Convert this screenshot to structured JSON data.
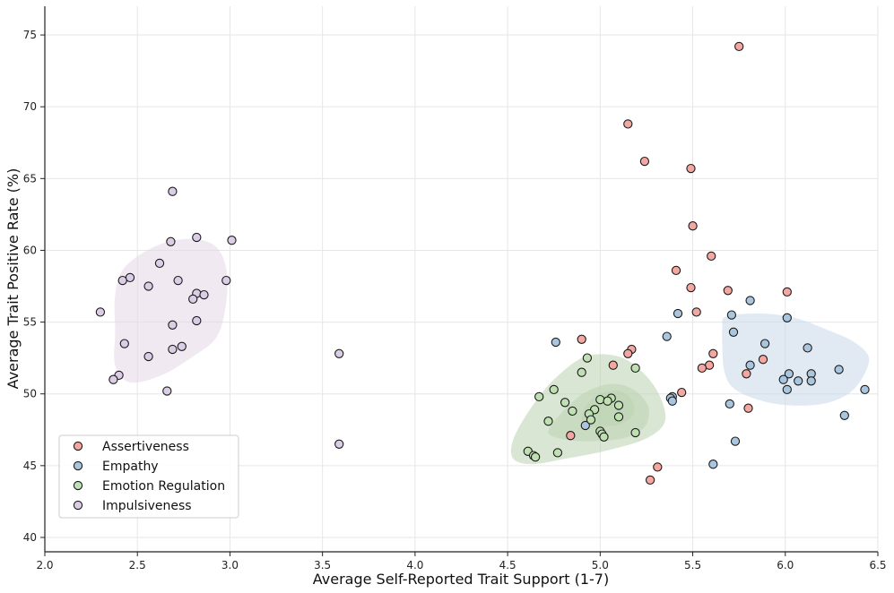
{
  "chart_data": {
    "type": "scatter",
    "title": "",
    "xlabel": "Average Self-Reported Trait Support (1-7)",
    "ylabel": "Average Trait Positive Rate (%)",
    "xlim": [
      2.0,
      6.5
    ],
    "ylim": [
      39.0,
      77.0
    ],
    "x_ticks": [
      "2.0",
      "2.5",
      "3.0",
      "3.5",
      "4.0",
      "4.5",
      "5.0",
      "5.5",
      "6.0",
      "6.5"
    ],
    "y_ticks": [
      "40",
      "45",
      "50",
      "55",
      "60",
      "65",
      "70",
      "75"
    ],
    "grid": true,
    "legend_position": "bottom-left",
    "series": [
      {
        "name": "Assertiveness",
        "color": "#f4a6a0",
        "density_color": "",
        "points": [
          [
            5.75,
            74.2
          ],
          [
            5.15,
            68.8
          ],
          [
            5.24,
            66.2
          ],
          [
            5.49,
            65.7
          ],
          [
            5.5,
            61.7
          ],
          [
            5.6,
            59.6
          ],
          [
            5.41,
            58.6
          ],
          [
            5.49,
            57.4
          ],
          [
            5.69,
            57.2
          ],
          [
            6.01,
            57.1
          ],
          [
            5.52,
            55.7
          ],
          [
            4.9,
            53.8
          ],
          [
            5.17,
            53.1
          ],
          [
            5.15,
            52.8
          ],
          [
            5.61,
            52.8
          ],
          [
            5.88,
            52.4
          ],
          [
            5.07,
            52.0
          ],
          [
            5.59,
            52.0
          ],
          [
            5.55,
            51.8
          ],
          [
            5.79,
            51.4
          ],
          [
            5.44,
            50.1
          ],
          [
            5.8,
            49.0
          ],
          [
            4.84,
            47.1
          ],
          [
            5.31,
            44.9
          ],
          [
            5.27,
            44.0
          ]
        ],
        "regions": []
      },
      {
        "name": "Empathy",
        "color": "#a9c6de",
        "density_color": "#c9d9ea",
        "points": [
          [
            5.81,
            56.5
          ],
          [
            5.42,
            55.6
          ],
          [
            5.71,
            55.5
          ],
          [
            6.01,
            55.3
          ],
          [
            5.72,
            54.3
          ],
          [
            4.76,
            53.6
          ],
          [
            5.36,
            54.0
          ],
          [
            5.89,
            53.5
          ],
          [
            6.12,
            53.2
          ],
          [
            5.81,
            52.0
          ],
          [
            6.29,
            51.7
          ],
          [
            6.02,
            51.4
          ],
          [
            6.14,
            51.4
          ],
          [
            5.99,
            51.0
          ],
          [
            6.07,
            50.9
          ],
          [
            6.14,
            50.9
          ],
          [
            6.01,
            50.3
          ],
          [
            6.43,
            50.3
          ],
          [
            5.39,
            49.8
          ],
          [
            5.38,
            49.7
          ],
          [
            5.39,
            49.5
          ],
          [
            5.7,
            49.3
          ],
          [
            4.92,
            47.8
          ],
          [
            6.32,
            48.5
          ],
          [
            5.73,
            46.7
          ],
          [
            5.61,
            45.1
          ]
        ],
        "regions": [
          [
            [
              5.68,
              55.4
            ],
            [
              5.87,
              55.6
            ],
            [
              6.05,
              55.3
            ],
            [
              6.2,
              54.6
            ],
            [
              6.36,
              53.7
            ],
            [
              6.45,
              52.6
            ],
            [
              6.42,
              51.2
            ],
            [
              6.34,
              50.0
            ],
            [
              6.2,
              49.3
            ],
            [
              6.02,
              49.2
            ],
            [
              5.85,
              49.6
            ],
            [
              5.72,
              50.4
            ],
            [
              5.67,
              51.6
            ],
            [
              5.66,
              53.3
            ],
            [
              5.66,
              54.6
            ]
          ]
        ]
      },
      {
        "name": "Emotion Regulation",
        "color": "#bfe0b2",
        "density_color": "#b8d1ae",
        "points": [
          [
            4.93,
            52.5
          ],
          [
            4.9,
            51.5
          ],
          [
            5.19,
            51.8
          ],
          [
            4.75,
            50.3
          ],
          [
            4.67,
            49.8
          ],
          [
            4.81,
            49.4
          ],
          [
            5.0,
            49.6
          ],
          [
            5.06,
            49.7
          ],
          [
            5.04,
            49.5
          ],
          [
            5.1,
            49.2
          ],
          [
            4.85,
            48.8
          ],
          [
            4.97,
            48.9
          ],
          [
            4.94,
            48.6
          ],
          [
            5.1,
            48.4
          ],
          [
            4.72,
            48.1
          ],
          [
            4.95,
            48.2
          ],
          [
            5.0,
            47.4
          ],
          [
            5.01,
            47.2
          ],
          [
            5.02,
            47.0
          ],
          [
            5.19,
            47.3
          ],
          [
            4.61,
            46.0
          ],
          [
            4.64,
            45.7
          ],
          [
            4.65,
            45.6
          ],
          [
            4.77,
            45.9
          ]
        ],
        "regions": [
          [
            [
              4.53,
              46.8
            ],
            [
              4.62,
              48.9
            ],
            [
              4.75,
              51.0
            ],
            [
              4.92,
              52.6
            ],
            [
              5.1,
              52.6
            ],
            [
              5.23,
              51.5
            ],
            [
              5.32,
              49.9
            ],
            [
              5.35,
              48.1
            ],
            [
              5.25,
              46.9
            ],
            [
              5.05,
              46.1
            ],
            [
              4.82,
              45.5
            ],
            [
              4.63,
              45.1
            ],
            [
              4.53,
              45.5
            ]
          ],
          [
            [
              4.72,
              47.4
            ],
            [
              4.8,
              48.8
            ],
            [
              4.92,
              50.1
            ],
            [
              5.06,
              50.7
            ],
            [
              5.18,
              50.3
            ],
            [
              5.26,
              49.1
            ],
            [
              5.24,
              47.7
            ],
            [
              5.12,
              46.9
            ],
            [
              4.92,
              46.7
            ],
            [
              4.78,
              46.9
            ]
          ],
          [
            [
              4.9,
              48.3
            ],
            [
              4.93,
              49.3
            ],
            [
              5.0,
              50.0
            ],
            [
              5.1,
              50.2
            ],
            [
              5.17,
              49.6
            ],
            [
              5.18,
              48.6
            ],
            [
              5.11,
              47.9
            ],
            [
              5.0,
              47.7
            ],
            [
              4.93,
              47.8
            ]
          ]
        ]
      },
      {
        "name": "Impulsiveness",
        "color": "#dccde6",
        "density_color": "#e3d7e8",
        "points": [
          [
            2.69,
            64.1
          ],
          [
            2.82,
            60.9
          ],
          [
            2.68,
            60.6
          ],
          [
            3.01,
            60.7
          ],
          [
            2.62,
            59.1
          ],
          [
            2.46,
            58.1
          ],
          [
            2.42,
            57.9
          ],
          [
            2.72,
            57.9
          ],
          [
            2.98,
            57.9
          ],
          [
            2.56,
            57.5
          ],
          [
            2.82,
            57.0
          ],
          [
            2.86,
            56.9
          ],
          [
            2.8,
            56.6
          ],
          [
            2.3,
            55.7
          ],
          [
            2.82,
            55.1
          ],
          [
            2.69,
            54.8
          ],
          [
            2.43,
            53.5
          ],
          [
            2.74,
            53.3
          ],
          [
            2.69,
            53.1
          ],
          [
            3.59,
            52.8
          ],
          [
            2.56,
            52.6
          ],
          [
            2.4,
            51.3
          ],
          [
            2.37,
            51.0
          ],
          [
            2.66,
            50.2
          ],
          [
            3.59,
            46.5
          ]
        ],
        "regions": [
          [
            [
              2.43,
              58.8
            ],
            [
              2.6,
              60.3
            ],
            [
              2.78,
              60.8
            ],
            [
              2.92,
              60.3
            ],
            [
              2.98,
              58.7
            ],
            [
              2.98,
              56.4
            ],
            [
              2.93,
              54.0
            ],
            [
              2.8,
              52.6
            ],
            [
              2.63,
              51.3
            ],
            [
              2.46,
              50.8
            ],
            [
              2.38,
              52.0
            ],
            [
              2.38,
              54.3
            ],
            [
              2.38,
              56.9
            ]
          ]
        ]
      }
    ]
  }
}
